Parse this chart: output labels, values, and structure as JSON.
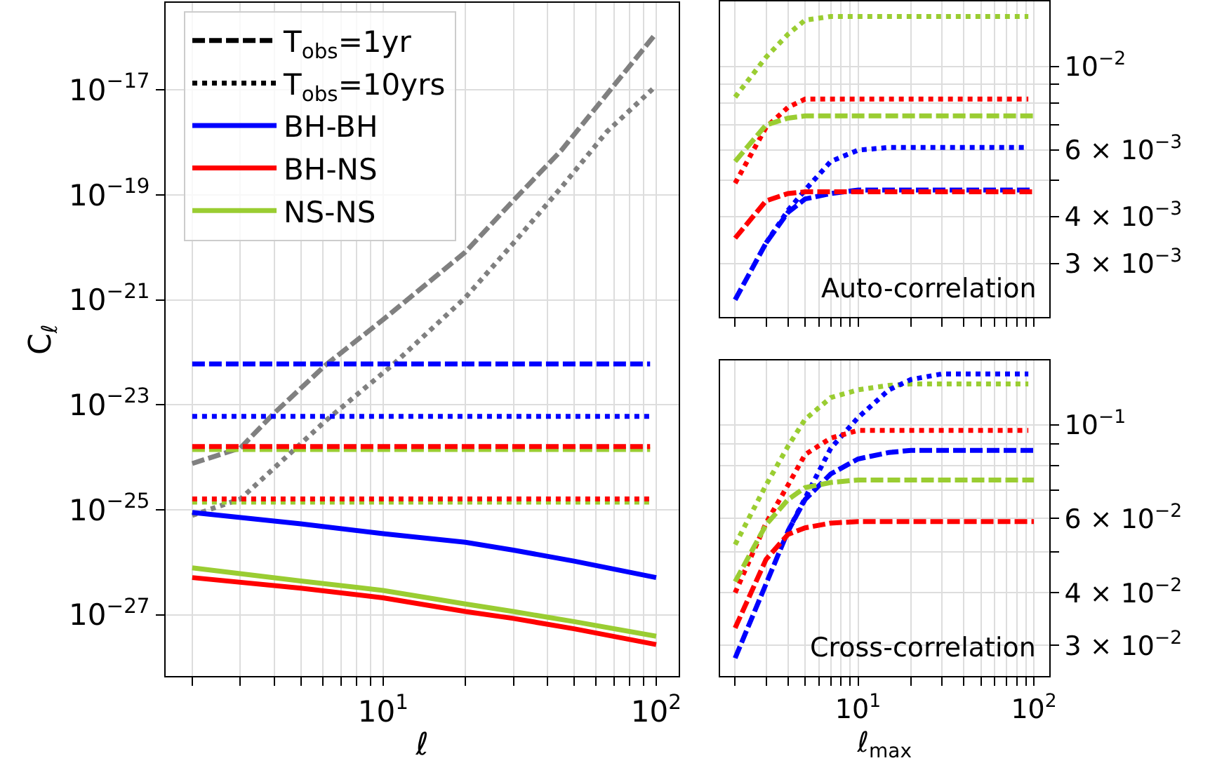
{
  "chart_data": [
    {
      "type": "line",
      "xlabel": "ℓ",
      "ylabel": "C$_{ℓ}$",
      "log": "xy",
      "grid": true,
      "legend": "top left",
      "marker": "none",
      "xlim": [
        1.6,
        121
      ],
      "ylim": [
        6.8e-29,
        4.5e-16
      ],
      "xticks": [
        {
          "value": 2,
          "label": null
        },
        {
          "value": 3,
          "label": null
        },
        {
          "value": 4,
          "label": null
        },
        {
          "value": 5,
          "label": null
        },
        {
          "value": 6,
          "label": null
        },
        {
          "value": 7,
          "label": null
        },
        {
          "value": 8,
          "label": null
        },
        {
          "value": 9,
          "label": null
        },
        {
          "value": 10,
          "label": "10$^{1}$"
        },
        {
          "value": 20,
          "label": null
        },
        {
          "value": 30,
          "label": null
        },
        {
          "value": 40,
          "label": null
        },
        {
          "value": 50,
          "label": null
        },
        {
          "value": 60,
          "label": null
        },
        {
          "value": 70,
          "label": null
        },
        {
          "value": 80,
          "label": null
        },
        {
          "value": 90,
          "label": null
        },
        {
          "value": 100,
          "label": "10$^{2}$"
        }
      ],
      "yticks": [
        {
          "value": 1e-27,
          "label": "10$^{−27}$"
        },
        {
          "value": 1e-25,
          "label": "10$^{−25}$"
        },
        {
          "value": 1e-23,
          "label": "10$^{−23}$"
        },
        {
          "value": 1e-21,
          "label": "10$^{−21}$"
        },
        {
          "value": 1e-19,
          "label": "10$^{−19}$"
        },
        {
          "value": 1e-17,
          "label": "10$^{−17}$"
        }
      ],
      "x": [
        2,
        5,
        10,
        20,
        30,
        50,
        100
      ],
      "series": [
        {
          "name": "T$_{obs}$=1yr",
          "color": "#000000",
          "line_style": "dashed",
          "values": [
            null,
            null,
            null,
            null,
            null,
            null,
            null
          ]
        },
        {
          "name": "T$_{obs}$=10yrs",
          "color": "#000000",
          "line_style": "dotted",
          "values": [
            null,
            null,
            null,
            null,
            null,
            null,
            null
          ]
        },
        {
          "color": "#808080",
          "line_style": "dashed",
          "x": [
            2,
            3,
            4,
            6.2,
            10,
            20,
            30,
            45,
            66,
            100
          ],
          "values": [
            7.6e-25,
            1.5e-24,
            7e-24,
            5.9e-23,
            4.2e-22,
            8.1e-21,
            7.8e-20,
            7.1e-19,
            8.3e-18,
            1.2e-16
          ]
        },
        {
          "color": "#808080",
          "line_style": "dotted",
          "x": [
            2,
            3,
            6.2,
            10.9,
            20,
            30,
            45,
            66,
            100
          ],
          "values": [
            7.8e-26,
            1.6e-25,
            5.1e-24,
            5.9e-23,
            1.1e-21,
            1.2e-20,
            1.4e-19,
            1.6e-18,
            1.2e-17
          ]
        },
        {
          "color": "#0000ff",
          "line_style": "dashed",
          "x": [
            2,
            95
          ],
          "values": [
            6e-23,
            6e-23
          ]
        },
        {
          "color": "#0000ff",
          "line_style": "dotted",
          "x": [
            2,
            95
          ],
          "values": [
            6e-24,
            6e-24
          ]
        },
        {
          "color": "#9acd32",
          "line_style": "dashed",
          "x": [
            2,
            95
          ],
          "values": [
            1.4e-24,
            1.4e-24
          ]
        },
        {
          "color": "#ff0000",
          "line_style": "dashed",
          "x": [
            2,
            95
          ],
          "values": [
            1.6e-24,
            1.6e-24
          ]
        },
        {
          "color": "#9acd32",
          "line_style": "dotted",
          "x": [
            2,
            95
          ],
          "values": [
            1.4e-25,
            1.4e-25
          ]
        },
        {
          "color": "#ff0000",
          "line_style": "dotted",
          "x": [
            2,
            95
          ],
          "values": [
            1.6e-25,
            1.6e-25
          ]
        },
        {
          "name": "BH-BH",
          "color": "#0000ff",
          "line_style": "solid",
          "values": [
            8.9e-26,
            5.4e-26,
            3.5e-26,
            2.4e-26,
            1.7e-26,
            1.05e-26,
            5.1e-27
          ]
        },
        {
          "name": "BH-NS",
          "color": "#ff0000",
          "line_style": "solid",
          "values": [
            5.1e-27,
            3.2e-27,
            2.1e-27,
            1.15e-27,
            8.5e-28,
            5.4e-28,
            2.7e-28
          ]
        },
        {
          "name": "NS-NS",
          "color": "#9acd32",
          "line_style": "solid",
          "values": [
            7.8e-27,
            4.4e-27,
            2.9e-27,
            1.6e-27,
            1.15e-27,
            7.4e-28,
            3.9e-28
          ]
        }
      ]
    },
    {
      "type": "line",
      "log": "xy",
      "grid": true,
      "marker": "none",
      "tick_labels": "y",
      "annotations": [
        "Auto-correlation"
      ],
      "xlim": [
        1.64,
        122
      ],
      "ylim": [
        0.00216,
        0.0149
      ],
      "xticks": [
        {
          "value": 2,
          "label": null
        },
        {
          "value": 3,
          "label": null
        },
        {
          "value": 4,
          "label": null
        },
        {
          "value": 5,
          "label": null
        },
        {
          "value": 6,
          "label": null
        },
        {
          "value": 7,
          "label": null
        },
        {
          "value": 8,
          "label": null
        },
        {
          "value": 9,
          "label": null
        },
        {
          "value": 10,
          "label": null
        },
        {
          "value": 20,
          "label": null
        },
        {
          "value": 30,
          "label": null
        },
        {
          "value": 40,
          "label": null
        },
        {
          "value": 50,
          "label": null
        },
        {
          "value": 60,
          "label": null
        },
        {
          "value": 70,
          "label": null
        },
        {
          "value": 80,
          "label": null
        },
        {
          "value": 90,
          "label": null
        },
        {
          "value": 100,
          "label": null
        }
      ],
      "yticks": [
        {
          "value": 0.003,
          "label": "3 × 10$^{−3}$"
        },
        {
          "value": 0.004,
          "label": "4 × 10$^{−3}$"
        },
        {
          "value": 0.005,
          "label": null
        },
        {
          "value": 0.006,
          "label": "6 × 10$^{−3}$"
        },
        {
          "value": 0.007,
          "label": null
        },
        {
          "value": 0.008,
          "label": null
        },
        {
          "value": 0.009,
          "label": null
        },
        {
          "value": 0.01,
          "label": "10$^{−2}$"
        }
      ],
      "x": [
        2,
        3,
        4,
        5,
        7,
        10,
        15,
        20,
        30,
        50,
        93
      ],
      "series": [
        {
          "color": "#9acd32",
          "line_style": "dotted",
          "values": [
            0.0083,
            0.0106,
            0.0122,
            0.0133,
            0.0136,
            0.0136,
            0.0136,
            0.0136,
            0.0136,
            0.0136,
            0.0136
          ]
        },
        {
          "color": "#ff0000",
          "line_style": "dotted",
          "values": [
            0.0049,
            0.0069,
            0.0078,
            0.0082,
            0.0082,
            0.0082,
            0.0082,
            0.0082,
            0.0082,
            0.0082,
            0.0082
          ]
        },
        {
          "color": "#9acd32",
          "line_style": "dashed",
          "x": [
            2,
            3,
            4,
            5,
            7,
            10,
            15,
            20,
            30,
            50,
            100
          ],
          "values": [
            0.0056,
            0.007,
            0.0073,
            0.0074,
            0.0074,
            0.0074,
            0.0074,
            0.0074,
            0.0074,
            0.0074,
            0.0074
          ]
        },
        {
          "color": "#0000ff",
          "line_style": "dotted",
          "x": [
            3,
            4,
            5,
            7,
            10,
            15,
            20,
            30,
            50,
            93
          ],
          "values": [
            0.0034,
            0.00415,
            0.0047,
            0.0056,
            0.006,
            0.0061,
            0.0061,
            0.0061,
            0.0061,
            0.0061
          ]
        },
        {
          "color": "#0000ff",
          "line_style": "dashed",
          "x": [
            2,
            3,
            4,
            5,
            7,
            10,
            15,
            20,
            30,
            50,
            100
          ],
          "values": [
            0.0024,
            0.0034,
            0.0041,
            0.00445,
            0.0046,
            0.0047,
            0.0047,
            0.0047,
            0.0047,
            0.0047,
            0.0047
          ]
        },
        {
          "color": "#ff0000",
          "line_style": "dashed",
          "x": [
            2,
            3,
            4,
            5,
            7,
            10,
            15,
            20,
            30,
            50,
            100
          ],
          "values": [
            0.0035,
            0.0044,
            0.0046,
            0.00465,
            0.00465,
            0.00465,
            0.00465,
            0.00465,
            0.00465,
            0.00465,
            0.00465
          ]
        }
      ]
    },
    {
      "type": "line",
      "xlabel": "ℓ$_{max}$",
      "log": "xy",
      "grid": true,
      "marker": "none",
      "annotations": [
        "Cross-correlation"
      ],
      "xlim": [
        1.64,
        122
      ],
      "ylim": [
        0.0254,
        0.142
      ],
      "xticks": [
        {
          "value": 2,
          "label": null
        },
        {
          "value": 3,
          "label": null
        },
        {
          "value": 4,
          "label": null
        },
        {
          "value": 5,
          "label": null
        },
        {
          "value": 6,
          "label": null
        },
        {
          "value": 7,
          "label": null
        },
        {
          "value": 8,
          "label": null
        },
        {
          "value": 9,
          "label": null
        },
        {
          "value": 10,
          "label": "10$^{1}$"
        },
        {
          "value": 20,
          "label": null
        },
        {
          "value": 30,
          "label": null
        },
        {
          "value": 40,
          "label": null
        },
        {
          "value": 50,
          "label": null
        },
        {
          "value": 60,
          "label": null
        },
        {
          "value": 70,
          "label": null
        },
        {
          "value": 80,
          "label": null
        },
        {
          "value": 90,
          "label": null
        },
        {
          "value": 100,
          "label": "10$^{2}$"
        }
      ],
      "yticks": [
        {
          "value": 0.03,
          "label": "3 × 10$^{−2}$"
        },
        {
          "value": 0.04,
          "label": "4 × 10$^{−2}$"
        },
        {
          "value": 0.05,
          "label": null
        },
        {
          "value": 0.06,
          "label": "6 × 10$^{−2}$"
        },
        {
          "value": 0.07,
          "label": null
        },
        {
          "value": 0.08,
          "label": null
        },
        {
          "value": 0.09,
          "label": null
        },
        {
          "value": 0.1,
          "label": "10$^{−1}$"
        }
      ],
      "x": [
        2,
        3,
        4,
        5,
        7,
        10,
        15,
        20,
        30,
        50,
        100
      ],
      "series": [
        {
          "color": "#9acd32",
          "line_style": "dotted",
          "x": [
            2,
            3,
            4,
            5,
            7,
            10,
            15,
            20,
            30,
            50,
            93
          ],
          "values": [
            0.052,
            0.072,
            0.089,
            0.103,
            0.116,
            0.121,
            0.124,
            0.125,
            0.125,
            0.125,
            0.125
          ]
        },
        {
          "color": "#0000ff",
          "line_style": "dotted",
          "x": [
            4,
            5,
            7,
            10,
            15,
            20,
            30,
            50,
            93
          ],
          "values": [
            0.056,
            0.067,
            0.088,
            0.104,
            0.121,
            0.128,
            0.132,
            0.132,
            0.132
          ]
        },
        {
          "color": "#ff0000",
          "line_style": "dotted",
          "x": [
            2,
            3,
            4,
            5,
            7,
            10,
            15,
            20,
            30,
            50,
            93
          ],
          "values": [
            0.04,
            0.0585,
            0.072,
            0.085,
            0.093,
            0.097,
            0.097,
            0.097,
            0.097,
            0.097,
            0.097
          ]
        },
        {
          "color": "#0000ff",
          "line_style": "dashed",
          "values": [
            0.028,
            0.042,
            0.056,
            0.0665,
            0.0765,
            0.083,
            0.086,
            0.087,
            0.087,
            0.087,
            0.087
          ]
        },
        {
          "color": "#9acd32",
          "line_style": "dashed",
          "values": [
            0.0425,
            0.058,
            0.0665,
            0.071,
            0.073,
            0.074,
            0.074,
            0.074,
            0.074,
            0.074,
            0.074
          ]
        },
        {
          "color": "#ff0000",
          "line_style": "dashed",
          "values": [
            0.033,
            0.048,
            0.055,
            0.057,
            0.0585,
            0.059,
            0.059,
            0.059,
            0.059,
            0.059,
            0.059
          ]
        }
      ]
    }
  ]
}
